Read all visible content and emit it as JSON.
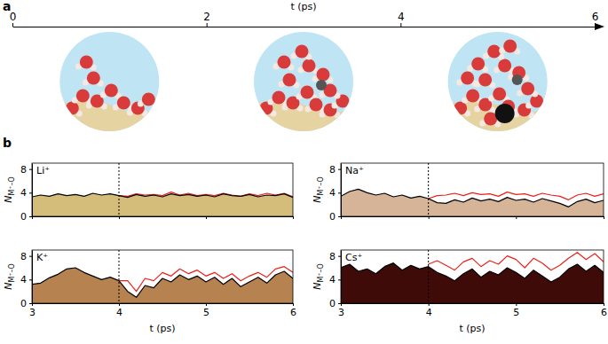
{
  "chart_data": [
    {
      "type": "timeline",
      "panel_label": "a",
      "xlabel": "t (ps)",
      "xlim": [
        0,
        6
      ],
      "xticks": [
        0,
        2,
        4,
        6
      ],
      "snapshots": [
        1,
        3,
        5
      ]
    },
    {
      "type": "line",
      "panel_label": "b",
      "title": "Li⁺",
      "ylabel": "N",
      "ylabel_subscript": "M⁺–O",
      "color": "#d4bd7a",
      "tick_labels": "y",
      "xlim": [
        3,
        6
      ],
      "ylim": [
        0,
        9
      ],
      "xticks": [
        3,
        4,
        5,
        6
      ],
      "yticks": [
        0,
        4,
        8
      ],
      "vline": 4,
      "x": [
        3,
        3.1,
        3.2,
        3.3,
        3.4,
        3.5,
        3.6,
        3.7,
        3.8,
        3.9,
        4,
        4.1,
        4.2,
        4.3,
        4.4,
        4.5,
        4.6,
        4.7,
        4.8,
        4.9,
        5,
        5.1,
        5.2,
        5.3,
        5.4,
        5.5,
        5.6,
        5.7,
        5.8,
        5.9,
        6
      ],
      "series": [
        {
          "type": "area",
          "color": "#000000",
          "values": [
            3.3,
            3.6,
            3.4,
            3.8,
            3.5,
            3.7,
            3.4,
            3.9,
            3.6,
            3.8,
            3.5,
            3.2,
            3.7,
            3.4,
            3.6,
            3.3,
            3.8,
            3.5,
            3.7,
            3.4,
            3.6,
            3.3,
            3.8,
            3.5,
            3.4,
            3.7,
            3.3,
            3.6,
            3.5,
            3.8,
            3.2
          ]
        },
        {
          "type": "line",
          "color": "#e8221b",
          "values": [
            null,
            null,
            null,
            null,
            null,
            null,
            null,
            null,
            null,
            null,
            3.5,
            3.4,
            3.8,
            3.6,
            3.7,
            3.5,
            4.1,
            3.6,
            3.9,
            3.5,
            3.7,
            3.5,
            3.9,
            3.6,
            3.4,
            3.8,
            3.5,
            3.9,
            3.6,
            3.9,
            3.3
          ]
        }
      ]
    },
    {
      "type": "line",
      "title": "Na⁺",
      "ylabel": "N",
      "ylabel_subscript": "M⁺–O",
      "color": "#d6b497",
      "tick_labels": "y",
      "xlim": [
        3,
        6
      ],
      "ylim": [
        0,
        9
      ],
      "xticks": [
        3,
        4,
        5,
        6
      ],
      "yticks": [
        0,
        4,
        8
      ],
      "vline": 4,
      "x": [
        3,
        3.1,
        3.2,
        3.3,
        3.4,
        3.5,
        3.6,
        3.7,
        3.8,
        3.9,
        4,
        4.1,
        4.2,
        4.3,
        4.4,
        4.5,
        4.6,
        4.7,
        4.8,
        4.9,
        5,
        5.1,
        5.2,
        5.3,
        5.4,
        5.5,
        5.6,
        5.7,
        5.8,
        5.9,
        6
      ],
      "series": [
        {
          "type": "area",
          "color": "#000000",
          "values": [
            3.4,
            4.2,
            4.6,
            4.0,
            3.6,
            3.9,
            3.3,
            3.6,
            3.1,
            3.4,
            3.0,
            2.3,
            2.2,
            2.8,
            2.4,
            3.1,
            2.6,
            2.9,
            2.5,
            3.2,
            2.7,
            2.9,
            2.4,
            3.0,
            2.6,
            2.2,
            1.6,
            2.5,
            2.9,
            2.3,
            2.7
          ]
        },
        {
          "type": "line",
          "color": "#e8221b",
          "values": [
            null,
            null,
            null,
            null,
            null,
            null,
            null,
            null,
            null,
            null,
            3.0,
            3.5,
            3.6,
            3.9,
            3.5,
            4.0,
            3.7,
            3.8,
            3.4,
            4.1,
            3.7,
            3.8,
            3.4,
            3.9,
            3.6,
            3.4,
            2.8,
            3.6,
            3.9,
            3.4,
            3.8
          ]
        }
      ]
    },
    {
      "type": "line",
      "title": "K⁺",
      "ylabel": "N",
      "ylabel_subscript": "M⁺–O",
      "xlabel": "t (ps)",
      "color": "#b58250",
      "xlim": [
        3,
        6
      ],
      "ylim": [
        0,
        9
      ],
      "xticks": [
        3,
        4,
        5,
        6
      ],
      "yticks": [
        0,
        4,
        8
      ],
      "vline": 4,
      "x": [
        3,
        3.1,
        3.2,
        3.3,
        3.4,
        3.5,
        3.6,
        3.7,
        3.8,
        3.9,
        4,
        4.1,
        4.2,
        4.3,
        4.4,
        4.5,
        4.6,
        4.7,
        4.8,
        4.9,
        5,
        5.1,
        5.2,
        5.3,
        5.4,
        5.5,
        5.6,
        5.7,
        5.8,
        5.9,
        6
      ],
      "series": [
        {
          "type": "area",
          "color": "#000000",
          "values": [
            3.2,
            3.4,
            4.3,
            4.9,
            5.8,
            6.0,
            5.2,
            4.6,
            4.0,
            4.4,
            3.8,
            2.0,
            1.0,
            3.0,
            2.6,
            4.2,
            3.6,
            4.8,
            4.0,
            4.6,
            3.6,
            4.4,
            3.2,
            4.2,
            2.8,
            3.6,
            4.4,
            3.4,
            4.8,
            5.4,
            4.2
          ]
        },
        {
          "type": "line",
          "color": "#e8221b",
          "values": [
            null,
            null,
            null,
            null,
            null,
            null,
            null,
            null,
            null,
            null,
            3.8,
            3.8,
            2.0,
            4.2,
            3.8,
            5.2,
            4.6,
            5.8,
            5.0,
            5.6,
            4.6,
            5.2,
            4.2,
            5.0,
            3.8,
            4.6,
            5.2,
            4.4,
            5.8,
            6.2,
            5.2
          ]
        }
      ]
    },
    {
      "type": "line",
      "title": "Cs⁺",
      "ylabel": "N",
      "ylabel_subscript": "M⁺–O",
      "xlabel": "t (ps)",
      "color": "#3f0b08",
      "xlim": [
        3,
        6
      ],
      "ylim": [
        0,
        9
      ],
      "xticks": [
        3,
        4,
        5,
        6
      ],
      "yticks": [
        0,
        4,
        8
      ],
      "vline": 4,
      "x": [
        3,
        3.1,
        3.2,
        3.3,
        3.4,
        3.5,
        3.6,
        3.7,
        3.8,
        3.9,
        4,
        4.1,
        4.2,
        4.3,
        4.4,
        4.5,
        4.6,
        4.7,
        4.8,
        4.9,
        5,
        5.1,
        5.2,
        5.3,
        5.4,
        5.5,
        5.6,
        5.7,
        5.8,
        5.9,
        6
      ],
      "series": [
        {
          "type": "area",
          "color": "#000000",
          "values": [
            6.0,
            6.6,
            5.4,
            5.8,
            5.0,
            6.2,
            6.8,
            5.6,
            6.4,
            5.8,
            6.2,
            5.2,
            4.6,
            3.8,
            5.0,
            5.8,
            4.4,
            5.4,
            4.8,
            6.0,
            5.2,
            4.2,
            5.6,
            4.6,
            3.6,
            4.4,
            5.8,
            6.6,
            5.4,
            6.4,
            5.2
          ]
        },
        {
          "type": "line",
          "color": "#e8221b",
          "values": [
            null,
            null,
            null,
            null,
            null,
            null,
            null,
            null,
            null,
            null,
            6.6,
            7.2,
            6.4,
            5.6,
            7.0,
            7.6,
            6.2,
            7.2,
            6.6,
            8.0,
            7.4,
            6.0,
            7.6,
            6.8,
            5.6,
            6.4,
            7.6,
            8.6,
            7.4,
            8.4,
            7.0
          ]
        }
      ]
    }
  ]
}
